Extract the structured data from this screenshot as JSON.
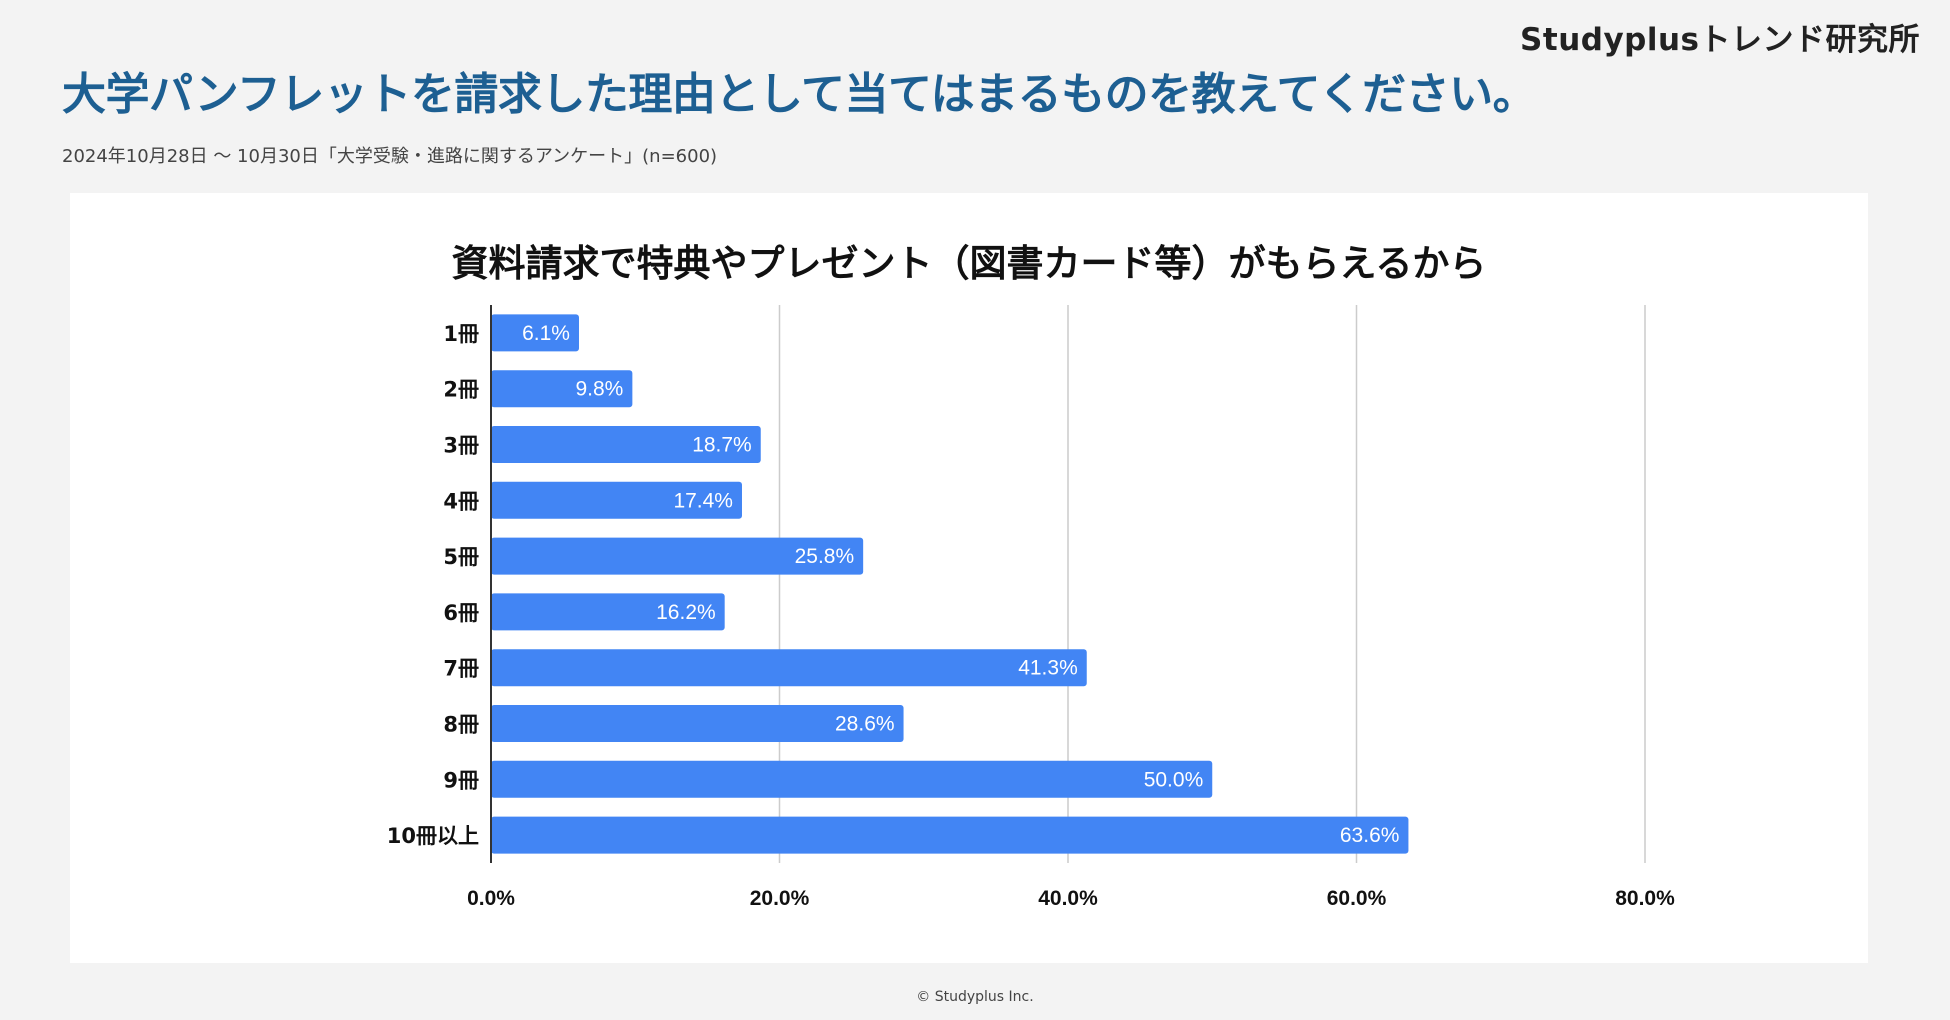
{
  "header": {
    "brand": "Studyplusトレンド研究所",
    "title": "大学パンフレットを請求した理由として当てはまるものを教えてください。",
    "subtitle": "2024年10月28日 〜 10月30日「大学受験・進路に関するアンケート」(n=600)"
  },
  "chart_data": {
    "type": "bar",
    "orientation": "horizontal",
    "title": "資料請求で特典やプレゼント（図書カード等）がもらえるから",
    "xlabel": "",
    "ylabel": "",
    "categories": [
      "1冊",
      "2冊",
      "3冊",
      "4冊",
      "5冊",
      "6冊",
      "7冊",
      "8冊",
      "9冊",
      "10冊以上"
    ],
    "values": [
      6.1,
      9.8,
      18.7,
      17.4,
      25.8,
      16.2,
      41.3,
      28.6,
      50.0,
      63.6
    ],
    "value_labels": [
      "6.1%",
      "9.8%",
      "18.7%",
      "17.4%",
      "25.8%",
      "16.2%",
      "41.3%",
      "28.6%",
      "50.0%",
      "63.6%"
    ],
    "xlim": [
      0,
      80
    ],
    "ticks": [
      0,
      20,
      40,
      60,
      80
    ],
    "tick_labels": [
      "0.0%",
      "20.0%",
      "40.0%",
      "60.0%",
      "80.0%"
    ],
    "grid": true,
    "legend": "none",
    "bar_color": "#4285f4"
  },
  "footer": {
    "copyright": "© Studyplus Inc."
  }
}
